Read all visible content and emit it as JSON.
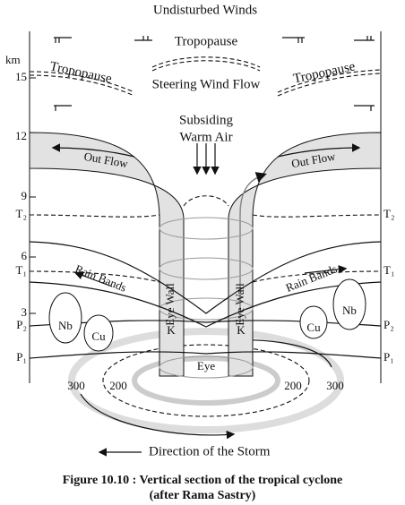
{
  "labels": {
    "top": "Undisturbed Winds",
    "tropopause_center": "Tropopause",
    "tropopause_left": "Tropopause",
    "tropopause_right": "Tropopause",
    "steering": "Steering Wind Flow",
    "subsiding": [
      "Subsiding",
      "Warm Air"
    ],
    "outflow_left": "Out Flow",
    "outflow_right": "Out Flow",
    "rainbands_left": "Rain Bands",
    "rainbands_right": "Rain Bands",
    "eyewall_left": "Eye Wall",
    "eyewall_right": "Eye Wall",
    "k_left": "K",
    "k_right": "K",
    "eye": "Eye",
    "clouds": [
      "Nb",
      "Cu",
      "Cu",
      "Nb"
    ],
    "direction": "Direction of the Storm"
  },
  "left_axis": {
    "unit": "km",
    "ticks": [
      "15",
      "12",
      "9",
      "6",
      "3"
    ],
    "levels": [
      "T₂",
      "T₁",
      "P₂",
      "P₁"
    ]
  },
  "right_axis": {
    "levels": [
      "T₂",
      "T₁",
      "P₂",
      "P₁"
    ]
  },
  "distance_labels": [
    "300",
    "200",
    "200",
    "300"
  ],
  "caption": [
    "Figure 10.10 : Vertical section of the tropical cyclone",
    "(after Rama Sastry)"
  ]
}
